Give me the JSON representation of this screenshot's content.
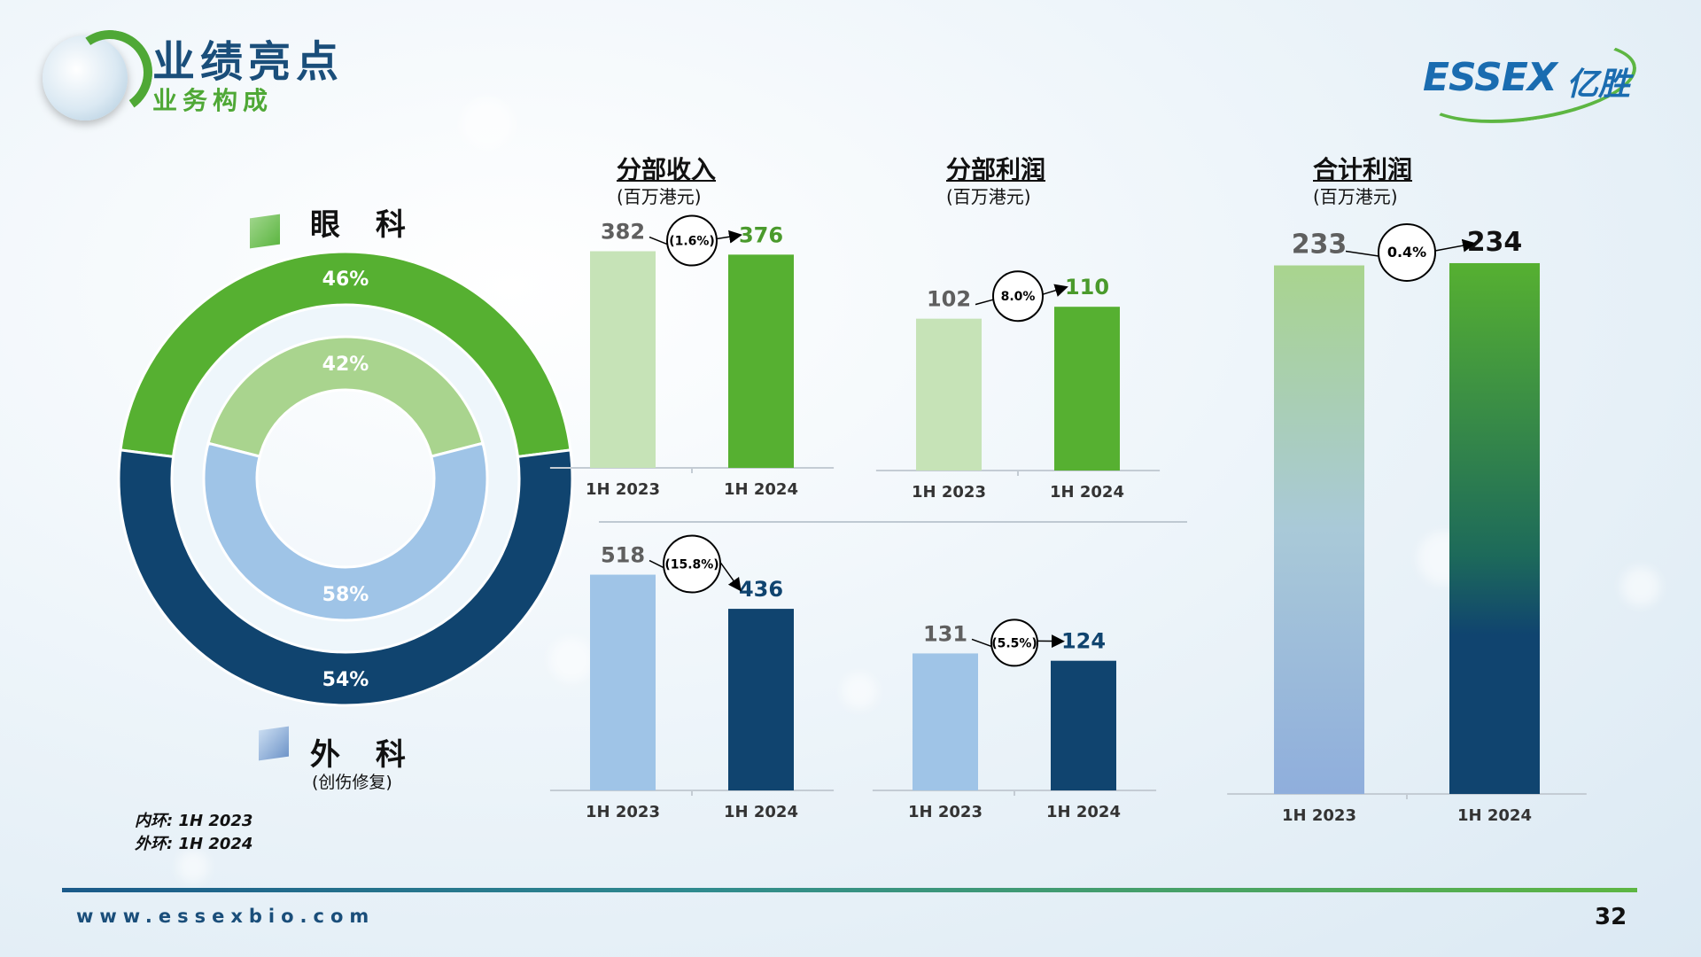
{
  "header": {
    "title": "业绩亮点",
    "subtitle": "业务构成",
    "brand_text": "ESSEX",
    "brand_cn": "亿胜"
  },
  "legend": {
    "ophthalmology": "眼 科",
    "surgery": "外 科",
    "surgery_note": "(创伤修复)",
    "inner_ring_note": "内环:  1H 2023",
    "outer_ring_note": "外环:  1H 2024"
  },
  "colors": {
    "green_dark": "#56b031",
    "green_light": "#c6e3b7",
    "green_ring_inner": "#a9d48e",
    "blue_dark": "#10446f",
    "blue_light": "#9fc4e7",
    "grey_value": "#5f5f5f"
  },
  "chart_data": [
    {
      "type": "pie",
      "subtype": "donut-nested",
      "rings": [
        {
          "name": "1H 2023",
          "position": "inner",
          "labels": [
            "眼科",
            "外科"
          ],
          "values": [
            42,
            58
          ],
          "display": [
            "42%",
            "58%"
          ]
        },
        {
          "name": "1H 2024",
          "position": "outer",
          "labels": [
            "眼科",
            "外科"
          ],
          "values": [
            46,
            54
          ],
          "display": [
            "46%",
            "54%"
          ]
        }
      ]
    },
    {
      "type": "bar",
      "title": "分部收入",
      "unit": "(百万港元)",
      "categories": [
        "1H 2023",
        "1H 2024"
      ],
      "values": [
        382,
        376
      ],
      "labels": [
        "382",
        "376"
      ],
      "change": "(1.6%)",
      "color_scheme": "green"
    },
    {
      "type": "bar",
      "title": "分部利润",
      "unit": "(百万港元)",
      "categories": [
        "1H 2023",
        "1H 2024"
      ],
      "values": [
        102,
        110
      ],
      "labels": [
        "102",
        "110"
      ],
      "change": "8.0%",
      "color_scheme": "green"
    },
    {
      "type": "bar",
      "categories": [
        "1H 2023",
        "1H 2024"
      ],
      "values": [
        518,
        436
      ],
      "labels": [
        "518",
        "436"
      ],
      "change": "(15.8%)",
      "color_scheme": "blue"
    },
    {
      "type": "bar",
      "categories": [
        "1H 2023",
        "1H 2024"
      ],
      "values": [
        131,
        124
      ],
      "labels": [
        "131",
        "124"
      ],
      "change": "(5.5%)",
      "color_scheme": "blue"
    },
    {
      "type": "bar",
      "title": "合计利润",
      "unit": "(百万港元)",
      "categories": [
        "1H 2023",
        "1H 2024"
      ],
      "values": [
        233,
        234
      ],
      "labels": [
        "233",
        "234"
      ],
      "change": "0.4%",
      "color_scheme": "gradient"
    }
  ],
  "footer": {
    "url": "www.essexbio.com",
    "page_number": "32"
  }
}
